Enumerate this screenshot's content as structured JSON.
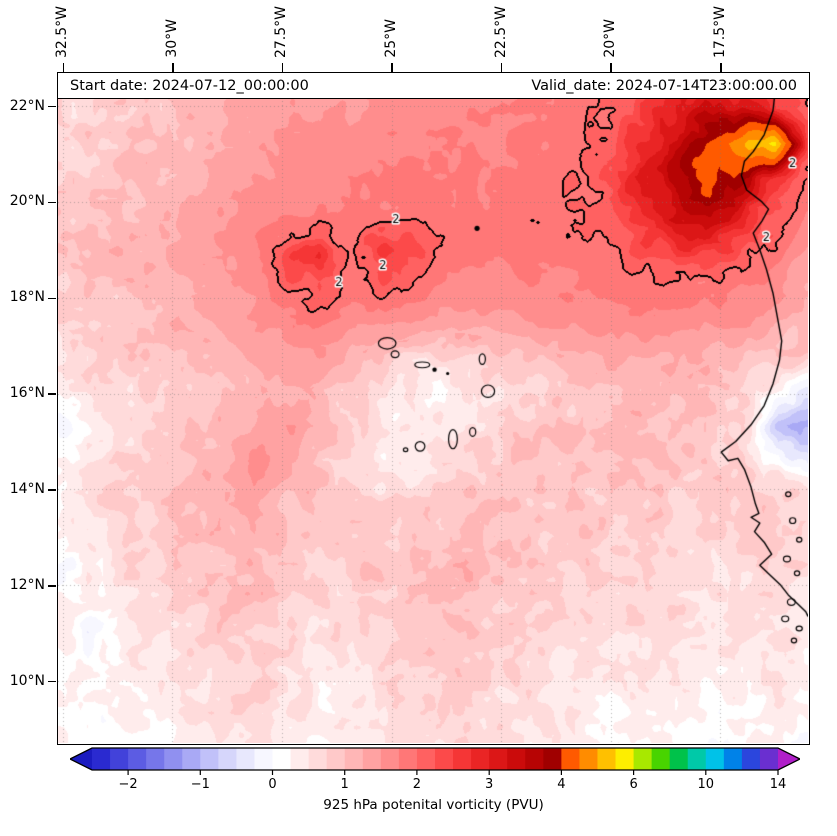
{
  "header": {
    "start_date": "Start date: 2024-07-12_00:00:00",
    "valid_date": "Valid_date: 2024-07-14T23:00:00.00"
  },
  "axes": {
    "x_ticks": [
      {
        "label": "32.5°W",
        "lon": -32.5
      },
      {
        "label": "30°W",
        "lon": -30
      },
      {
        "label": "27.5°W",
        "lon": -27.5
      },
      {
        "label": "25°W",
        "lon": -25
      },
      {
        "label": "22.5°W",
        "lon": -22.5
      },
      {
        "label": "20°W",
        "lon": -20
      },
      {
        "label": "17.5°W",
        "lon": -17.5
      }
    ],
    "y_ticks": [
      {
        "label": "22°N",
        "lat": 22
      },
      {
        "label": "20°N",
        "lat": 20
      },
      {
        "label": "18°N",
        "lat": 18
      },
      {
        "label": "16°N",
        "lat": 16
      },
      {
        "label": "14°N",
        "lat": 14
      },
      {
        "label": "12°N",
        "lat": 12
      },
      {
        "label": "10°N",
        "lat": 10
      }
    ]
  },
  "colorbar": {
    "title": "925 hPa potenital vorticity (PVU)",
    "ticks": [
      {
        "label": "−2",
        "value": -2
      },
      {
        "label": "−1",
        "value": -1
      },
      {
        "label": "0",
        "value": 0
      },
      {
        "label": "1",
        "value": 1
      },
      {
        "label": "2",
        "value": 2
      },
      {
        "label": "3",
        "value": 3
      },
      {
        "label": "4",
        "value": 4
      },
      {
        "label": "6",
        "value": 6
      },
      {
        "label": "10",
        "value": 10
      },
      {
        "label": "14",
        "value": 14
      }
    ],
    "boundaries": [
      -2.5,
      -2.25,
      -2,
      -1.75,
      -1.5,
      -1.25,
      -1,
      -0.75,
      -0.5,
      -0.25,
      0,
      0.25,
      0.5,
      0.75,
      1,
      1.25,
      1.5,
      1.75,
      2,
      2.25,
      2.5,
      2.75,
      3,
      3.25,
      3.5,
      3.75,
      4,
      4.5,
      5,
      5.5,
      6,
      7,
      8,
      9,
      10,
      11,
      12,
      13,
      14
    ],
    "colors": [
      "#2a2ad0",
      "#4242da",
      "#5c5ce3",
      "#7676ea",
      "#9090f0",
      "#a9a9f5",
      "#c1c1f9",
      "#d6d6fb",
      "#e8e8fd",
      "#f7f7ff",
      "#ffffff",
      "#ffecec",
      "#ffdbdb",
      "#ffc9c9",
      "#ffb6b6",
      "#ffa2a2",
      "#ff8d8d",
      "#ff7777",
      "#ff6161",
      "#fc4a4a",
      "#f53636",
      "#ea2525",
      "#dc1717",
      "#cb0b0b",
      "#b70404",
      "#a00000",
      "#ff5a00",
      "#ff8c00",
      "#ffc000",
      "#fdee00",
      "#a8e800",
      "#48d400",
      "#00c24a",
      "#00c9a8",
      "#00c2e8",
      "#0082e8",
      "#2b46dd",
      "#6a2fd0"
    ],
    "arrow_left_color": "#1b1bc0",
    "arrow_right_color": "#b01ec9"
  },
  "chart_data": {
    "type": "heatmap",
    "field_label": "925 hPa potenital vorticity (PVU)",
    "geo": {
      "lon_min": -32.61,
      "lon_max": -15.5,
      "lat_min": 8.71,
      "lat_max": 22.69
    },
    "grid": {
      "lon_min": -32.61,
      "lon_max": -15.5,
      "lat_min": 8.71,
      "lat_max": 22.69,
      "units": "PVU",
      "values": [
        [
          0.8,
          0.9,
          1.0,
          1.1,
          1.1,
          1.2,
          1.3,
          1.3,
          1.4,
          1.5,
          1.5,
          1.6,
          1.6,
          1.7,
          1.7,
          1.8,
          1.8,
          1.9,
          2.2,
          2.6,
          2.6,
          2.4,
          2.2,
          1.8
        ],
        [
          0.7,
          0.8,
          0.9,
          1.0,
          1.1,
          1.2,
          1.3,
          1.4,
          1.5,
          1.5,
          1.6,
          1.6,
          1.7,
          1.7,
          1.8,
          1.8,
          1.9,
          2.1,
          2.5,
          3.0,
          3.3,
          3.3,
          2.6,
          2.0
        ],
        [
          0.6,
          0.8,
          0.9,
          1.0,
          1.1,
          1.3,
          1.4,
          1.5,
          1.6,
          1.6,
          1.7,
          1.7,
          1.7,
          1.7,
          1.8,
          1.8,
          1.9,
          2.3,
          2.8,
          3.4,
          4.2,
          4.8,
          5.8,
          2.4
        ],
        [
          0.7,
          0.9,
          1.0,
          1.1,
          1.2,
          1.4,
          1.5,
          1.6,
          1.7,
          1.7,
          1.8,
          1.8,
          1.8,
          1.8,
          1.8,
          1.9,
          2.0,
          2.4,
          3.0,
          3.6,
          4.2,
          3.8,
          2.6,
          1.9
        ],
        [
          0.8,
          1.0,
          1.1,
          1.2,
          1.3,
          1.5,
          1.6,
          1.7,
          1.8,
          1.8,
          1.8,
          1.9,
          1.8,
          1.8,
          1.9,
          1.9,
          2.0,
          2.2,
          2.7,
          3.3,
          3.6,
          3.0,
          2.2,
          1.7
        ],
        [
          0.9,
          1.0,
          1.1,
          1.2,
          1.4,
          1.5,
          1.7,
          2.3,
          2.6,
          1.9,
          2.5,
          2.2,
          1.9,
          1.8,
          1.8,
          1.9,
          1.9,
          2.0,
          2.3,
          2.7,
          2.6,
          2.2,
          1.9,
          1.5
        ],
        [
          0.8,
          0.9,
          1.0,
          1.1,
          1.3,
          1.4,
          1.6,
          2.0,
          2.4,
          1.8,
          2.2,
          1.9,
          1.7,
          1.6,
          1.7,
          1.7,
          1.8,
          1.8,
          1.9,
          2.0,
          1.9,
          1.8,
          1.6,
          1.3
        ],
        [
          0.7,
          0.8,
          0.9,
          1.0,
          1.2,
          1.3,
          1.5,
          1.7,
          1.9,
          1.6,
          1.7,
          1.5,
          1.4,
          1.4,
          1.5,
          1.5,
          1.6,
          1.6,
          1.7,
          1.7,
          1.6,
          1.5,
          1.3,
          1.1
        ],
        [
          0.6,
          0.7,
          0.8,
          0.9,
          1.0,
          1.1,
          1.3,
          1.4,
          1.5,
          1.2,
          0.9,
          0.8,
          0.7,
          0.8,
          1.0,
          1.1,
          1.2,
          1.3,
          1.3,
          1.3,
          1.2,
          1.1,
          1.0,
          0.9
        ],
        [
          0.5,
          0.6,
          0.7,
          0.8,
          0.9,
          1.0,
          1.1,
          1.2,
          1.1,
          0.9,
          0.6,
          0.4,
          0.3,
          0.5,
          0.7,
          0.9,
          1.0,
          1.1,
          1.1,
          1.1,
          1.0,
          0.8,
          0.3,
          -0.4
        ],
        [
          -0.2,
          0.3,
          0.6,
          0.8,
          0.9,
          1.1,
          1.3,
          1.5,
          1.2,
          0.8,
          0.5,
          0.3,
          0.4,
          0.6,
          0.8,
          0.9,
          1.0,
          1.0,
          1.1,
          1.0,
          0.9,
          0.7,
          -0.6,
          -1.3
        ],
        [
          0.2,
          0.5,
          0.7,
          0.9,
          1.0,
          1.2,
          1.6,
          1.4,
          1.0,
          0.7,
          0.4,
          0.5,
          0.6,
          0.8,
          0.9,
          1.0,
          1.0,
          1.0,
          1.0,
          0.9,
          0.8,
          0.7,
          0.2,
          -0.4
        ],
        [
          0.4,
          0.6,
          0.8,
          0.9,
          1.1,
          1.2,
          1.4,
          1.1,
          0.9,
          0.8,
          0.6,
          0.7,
          0.9,
          1.0,
          1.0,
          0.9,
          0.9,
          0.9,
          0.9,
          0.8,
          0.8,
          0.9,
          0.8,
          0.6
        ],
        [
          0.3,
          0.5,
          0.7,
          0.8,
          1.0,
          1.1,
          1.2,
          1.0,
          0.8,
          0.9,
          0.7,
          0.8,
          1.0,
          1.1,
          1.0,
          0.8,
          0.9,
          0.8,
          0.8,
          0.8,
          0.7,
          0.8,
          0.9,
          0.7
        ],
        [
          -0.2,
          0.4,
          0.6,
          0.7,
          0.9,
          1.0,
          1.1,
          0.9,
          0.7,
          0.8,
          0.9,
          1.0,
          1.1,
          1.2,
          1.0,
          0.9,
          0.8,
          0.7,
          0.8,
          0.7,
          0.6,
          0.7,
          0.8,
          0.6
        ],
        [
          0.2,
          0.3,
          0.5,
          0.6,
          0.8,
          0.9,
          1.0,
          0.8,
          0.6,
          0.7,
          0.8,
          1.0,
          1.1,
          1.0,
          0.9,
          0.8,
          0.7,
          0.6,
          0.7,
          0.6,
          0.5,
          0.6,
          0.7,
          0.5
        ],
        [
          0.3,
          -0.2,
          0.4,
          0.5,
          0.7,
          0.8,
          0.9,
          0.7,
          0.5,
          0.6,
          0.7,
          0.9,
          1.0,
          0.9,
          0.8,
          0.7,
          0.6,
          0.5,
          0.6,
          0.5,
          0.4,
          0.5,
          0.6,
          0.4
        ],
        [
          0.2,
          0.3,
          0.4,
          0.4,
          0.6,
          0.7,
          0.8,
          0.6,
          0.4,
          0.5,
          0.6,
          0.8,
          0.9,
          0.8,
          0.7,
          0.6,
          0.5,
          0.4,
          0.5,
          0.4,
          0.3,
          0.4,
          0.5,
          0.3
        ],
        [
          0.1,
          0.2,
          0.3,
          0.3,
          0.5,
          0.6,
          0.7,
          0.5,
          0.3,
          0.4,
          0.5,
          0.7,
          0.8,
          0.7,
          0.6,
          0.5,
          0.4,
          0.3,
          0.4,
          0.3,
          0.2,
          0.3,
          0.4,
          0.2
        ],
        [
          0.1,
          0.1,
          0.2,
          0.2,
          0.4,
          0.5,
          0.6,
          0.4,
          0.2,
          0.3,
          0.4,
          0.6,
          0.7,
          0.6,
          0.5,
          0.4,
          0.3,
          0.2,
          0.3,
          0.2,
          0.1,
          0.2,
          0.3,
          0.1
        ]
      ]
    },
    "contours": {
      "level": 2,
      "labels": [
        {
          "text": "2",
          "lon": -24.9,
          "lat": 19.62
        },
        {
          "text": "2",
          "lon": -25.2,
          "lat": 18.66
        },
        {
          "text": "2",
          "lon": -26.2,
          "lat": 18.3
        },
        {
          "text": "2",
          "lon": -15.85,
          "lat": 20.8
        },
        {
          "text": "2",
          "lon": -16.45,
          "lat": 19.25
        }
      ]
    },
    "coastlines": {
      "mainland": [
        [
          -16.2,
          22.69
        ],
        [
          -16.3,
          21.9
        ],
        [
          -16.5,
          21.4
        ],
        [
          -16.75,
          21.05
        ],
        [
          -16.95,
          20.85
        ],
        [
          -17.02,
          20.55
        ],
        [
          -16.9,
          20.25
        ],
        [
          -16.55,
          20.0
        ],
        [
          -16.4,
          19.85
        ],
        [
          -16.55,
          19.6
        ],
        [
          -16.75,
          19.35
        ],
        [
          -16.6,
          19.0
        ],
        [
          -16.45,
          18.6
        ],
        [
          -16.3,
          18.1
        ],
        [
          -16.2,
          17.6
        ],
        [
          -16.1,
          17.1
        ],
        [
          -16.15,
          16.7
        ],
        [
          -16.3,
          16.2
        ],
        [
          -16.5,
          15.75
        ],
        [
          -16.8,
          15.35
        ],
        [
          -17.15,
          15.0
        ],
        [
          -17.48,
          14.78
        ],
        [
          -17.32,
          14.6
        ],
        [
          -17.1,
          14.65
        ],
        [
          -16.95,
          14.42
        ],
        [
          -16.8,
          14.05
        ],
        [
          -16.7,
          13.7
        ],
        [
          -16.62,
          13.5
        ],
        [
          -16.8,
          13.42
        ],
        [
          -16.6,
          13.3
        ],
        [
          -16.72,
          13.12
        ],
        [
          -16.5,
          12.9
        ],
        [
          -16.33,
          12.65
        ],
        [
          -16.6,
          12.42
        ],
        [
          -16.35,
          12.2
        ],
        [
          -16.12,
          12.0
        ],
        [
          -15.95,
          11.8
        ],
        [
          -15.72,
          11.6
        ],
        [
          -15.55,
          11.45
        ],
        [
          -15.5,
          11.35
        ]
      ],
      "islands": [
        [
          -25.1,
          17.05,
          0.2,
          0.12
        ],
        [
          -24.92,
          16.82,
          0.09,
          0.07
        ],
        [
          -24.3,
          16.6,
          0.17,
          0.06
        ],
        [
          -22.93,
          16.72,
          0.07,
          0.11
        ],
        [
          -22.8,
          16.05,
          0.15,
          0.13
        ],
        [
          -23.15,
          15.2,
          0.07,
          0.09
        ],
        [
          -23.6,
          15.05,
          0.1,
          0.2
        ],
        [
          -24.35,
          14.9,
          0.11,
          0.1
        ],
        [
          -24.68,
          14.83,
          0.05,
          0.04
        ],
        [
          -15.95,
          13.9,
          0.06,
          0.05
        ],
        [
          -15.85,
          13.35,
          0.07,
          0.06
        ],
        [
          -15.7,
          12.95,
          0.06,
          0.05
        ],
        [
          -15.98,
          12.55,
          0.08,
          0.06
        ],
        [
          -15.75,
          12.25,
          0.06,
          0.05
        ],
        [
          -15.88,
          11.65,
          0.09,
          0.07
        ],
        [
          -16.02,
          11.3,
          0.08,
          0.06
        ],
        [
          -15.7,
          11.1,
          0.07,
          0.05
        ],
        [
          -15.82,
          10.85,
          0.06,
          0.05
        ]
      ],
      "dots": [
        [
          -24.02,
          16.5,
          2.2
        ],
        [
          -23.72,
          16.42,
          1.6
        ],
        [
          -23.05,
          19.45,
          2.6
        ]
      ]
    }
  }
}
